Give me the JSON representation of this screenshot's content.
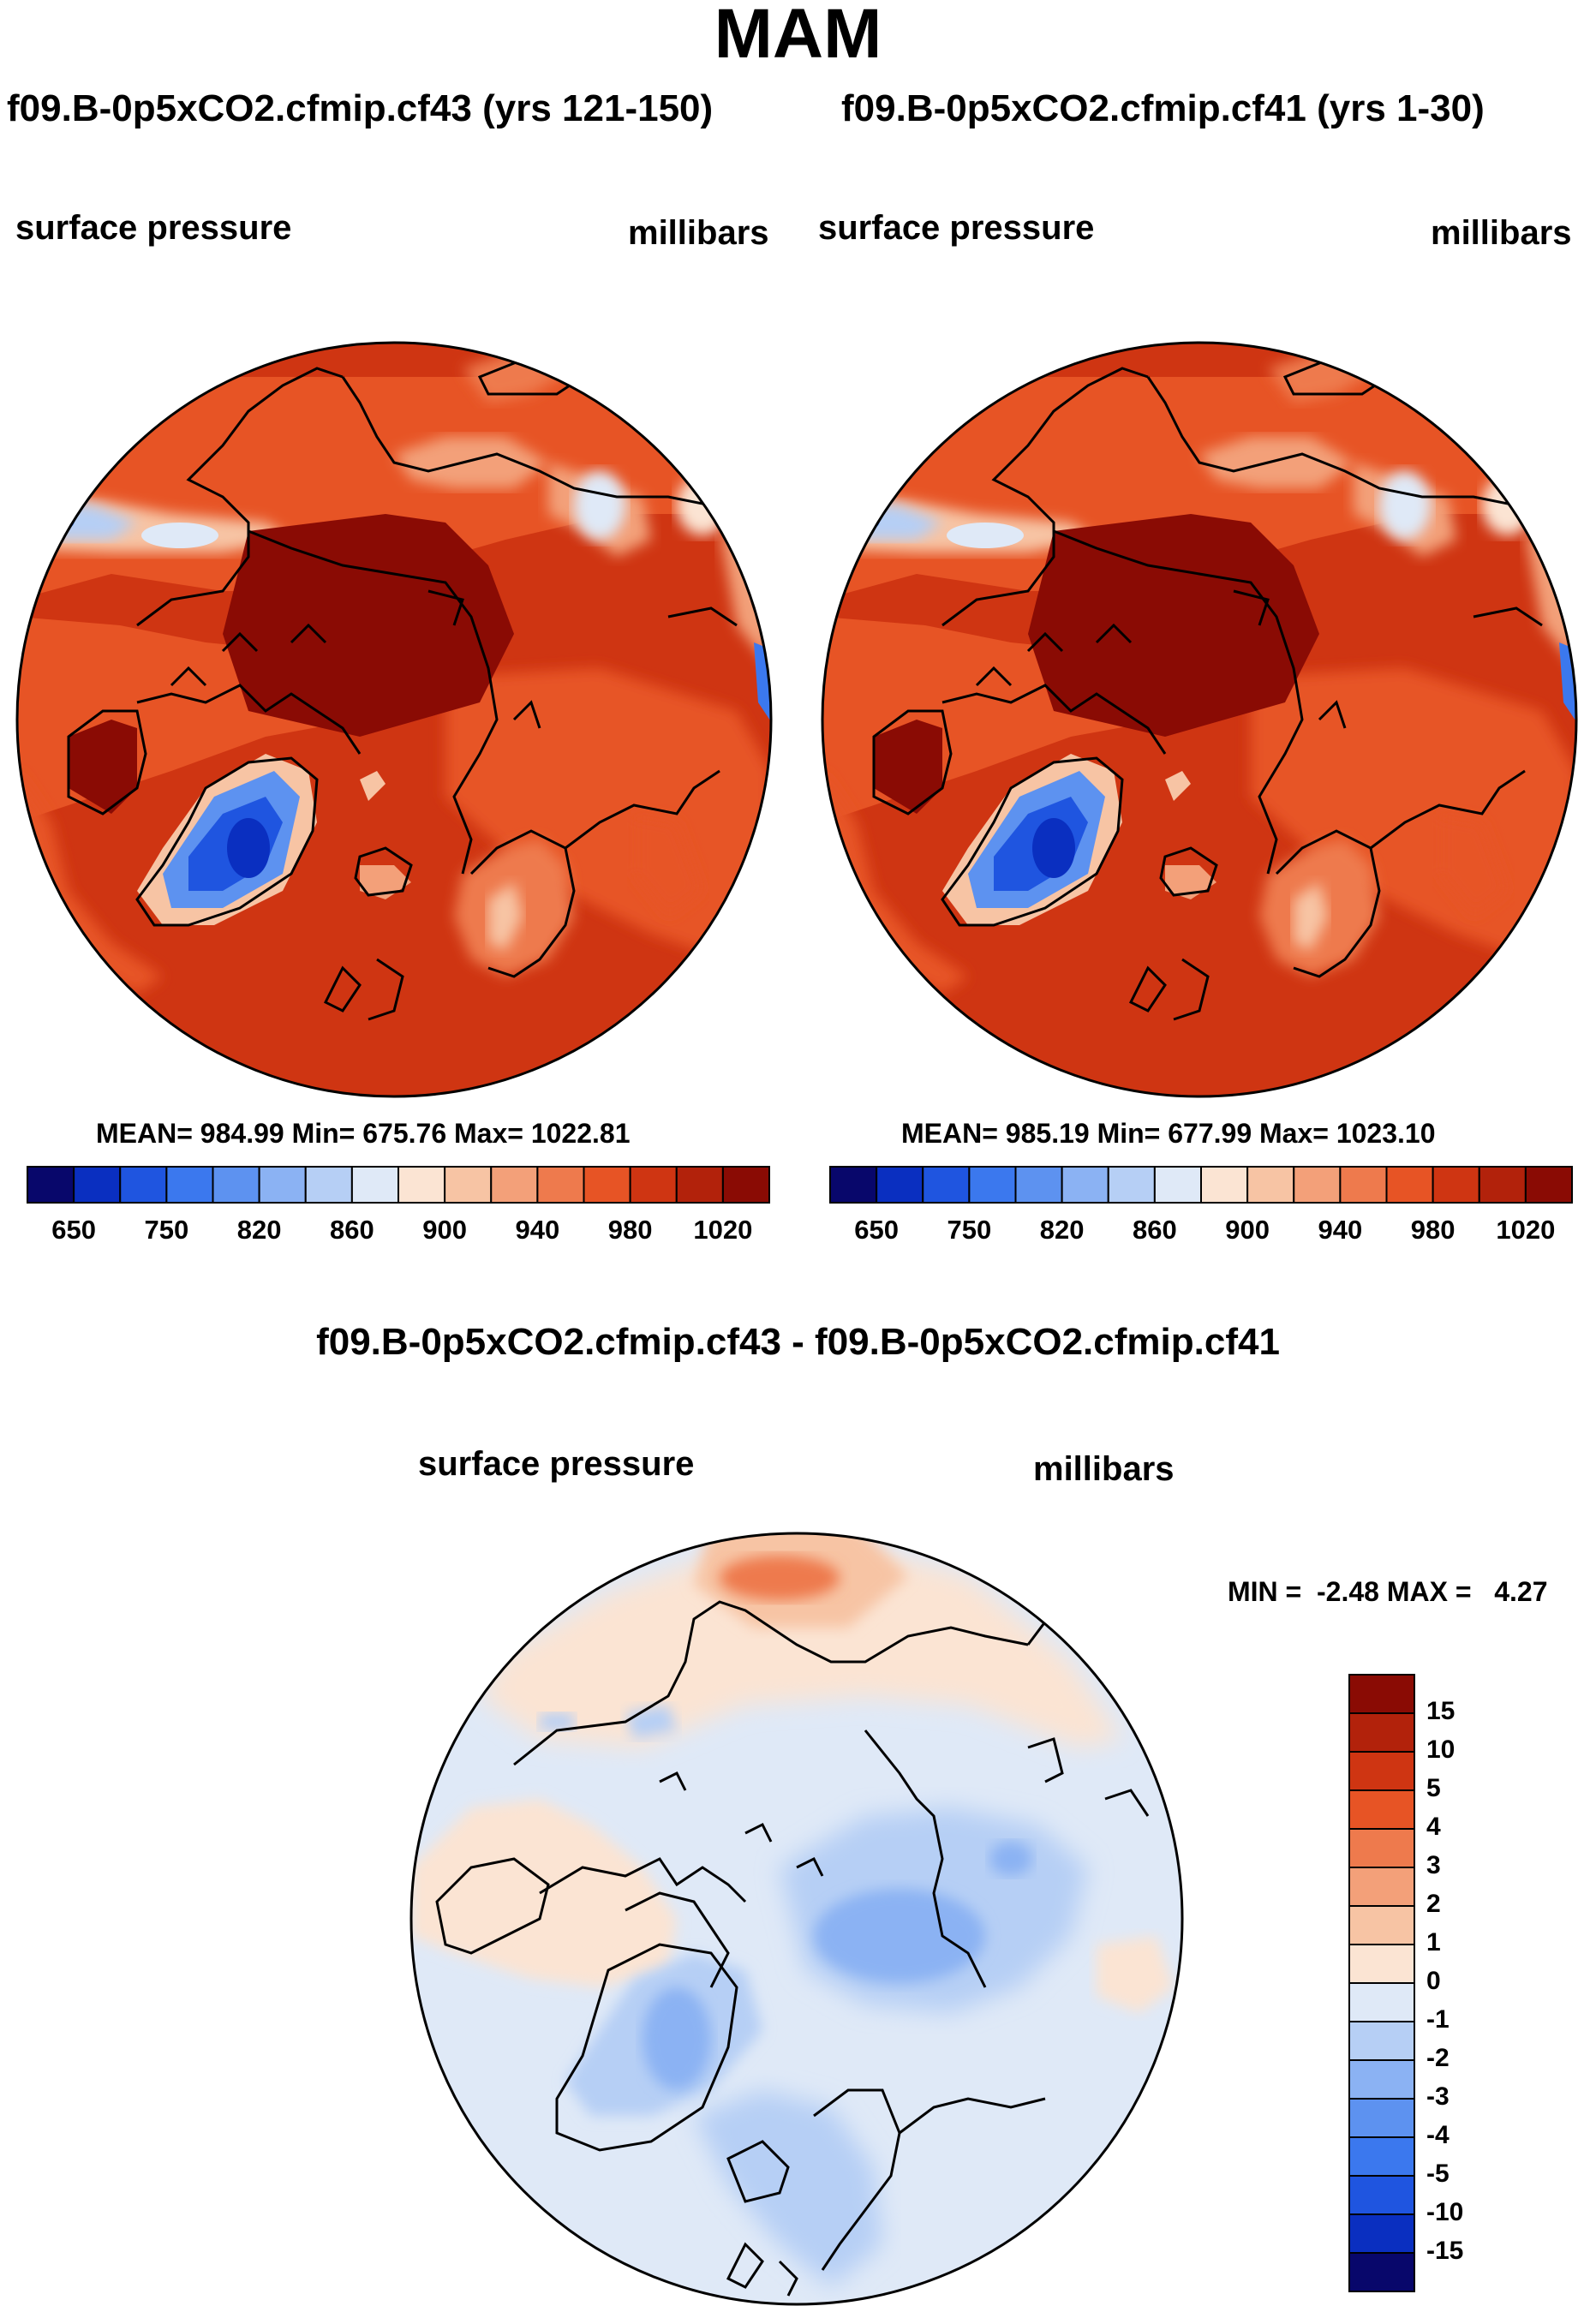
{
  "title": "MAM",
  "panels": [
    {
      "title": "f09.B-0p5xCO2.cfmip.cf43 (yrs 121-150)",
      "variable": "surface pressure",
      "units": "millibars",
      "stats": "MEAN= 984.99  Min= 675.76  Max= 1022.81",
      "mean": 984.99,
      "min": 675.76,
      "max": 1022.81
    },
    {
      "title": "f09.B-0p5xCO2.cfmip.cf41 (yrs 1-30)",
      "variable": "surface pressure",
      "units": "millibars",
      "stats": "MEAN= 985.19  Min= 677.99  Max= 1023.10",
      "mean": 985.19,
      "min": 677.99,
      "max": 1023.1
    }
  ],
  "colorbar_top": {
    "tick_labels": [
      "650",
      "750",
      "820",
      "860",
      "900",
      "940",
      "980",
      "1020"
    ],
    "colors": [
      "#08076b",
      "#0a2fc0",
      "#1f55e0",
      "#3b78ee",
      "#5d92f0",
      "#8bb2f3",
      "#b6cff5",
      "#dfe9f7",
      "#fbe4d3",
      "#f7c4a4",
      "#f3a079",
      "#ee7a4d",
      "#e75425",
      "#cf3512",
      "#b2220b",
      "#8a0b04"
    ]
  },
  "difference": {
    "title": "f09.B-0p5xCO2.cfmip.cf43 - f09.B-0p5xCO2.cfmip.cf41",
    "variable": "surface pressure",
    "units": "millibars",
    "stats": "MIN =  -2.48 MAX =   4.27",
    "min": -2.48,
    "max": 4.27,
    "colorbar": {
      "labels": [
        "15",
        "10",
        "5",
        "4",
        "3",
        "2",
        "1",
        "0",
        "-1",
        "-2",
        "-3",
        "-4",
        "-5",
        "-10",
        "-15"
      ],
      "colors": [
        "#8a0b04",
        "#b2220b",
        "#cf3512",
        "#e75425",
        "#ee7a4d",
        "#f3a079",
        "#f7c4a4",
        "#fbe4d3",
        "#dfe9f7",
        "#b6cff5",
        "#8bb2f3",
        "#5d92f0",
        "#3b78ee",
        "#1f55e0",
        "#0a2fc0",
        "#08076b"
      ]
    }
  }
}
